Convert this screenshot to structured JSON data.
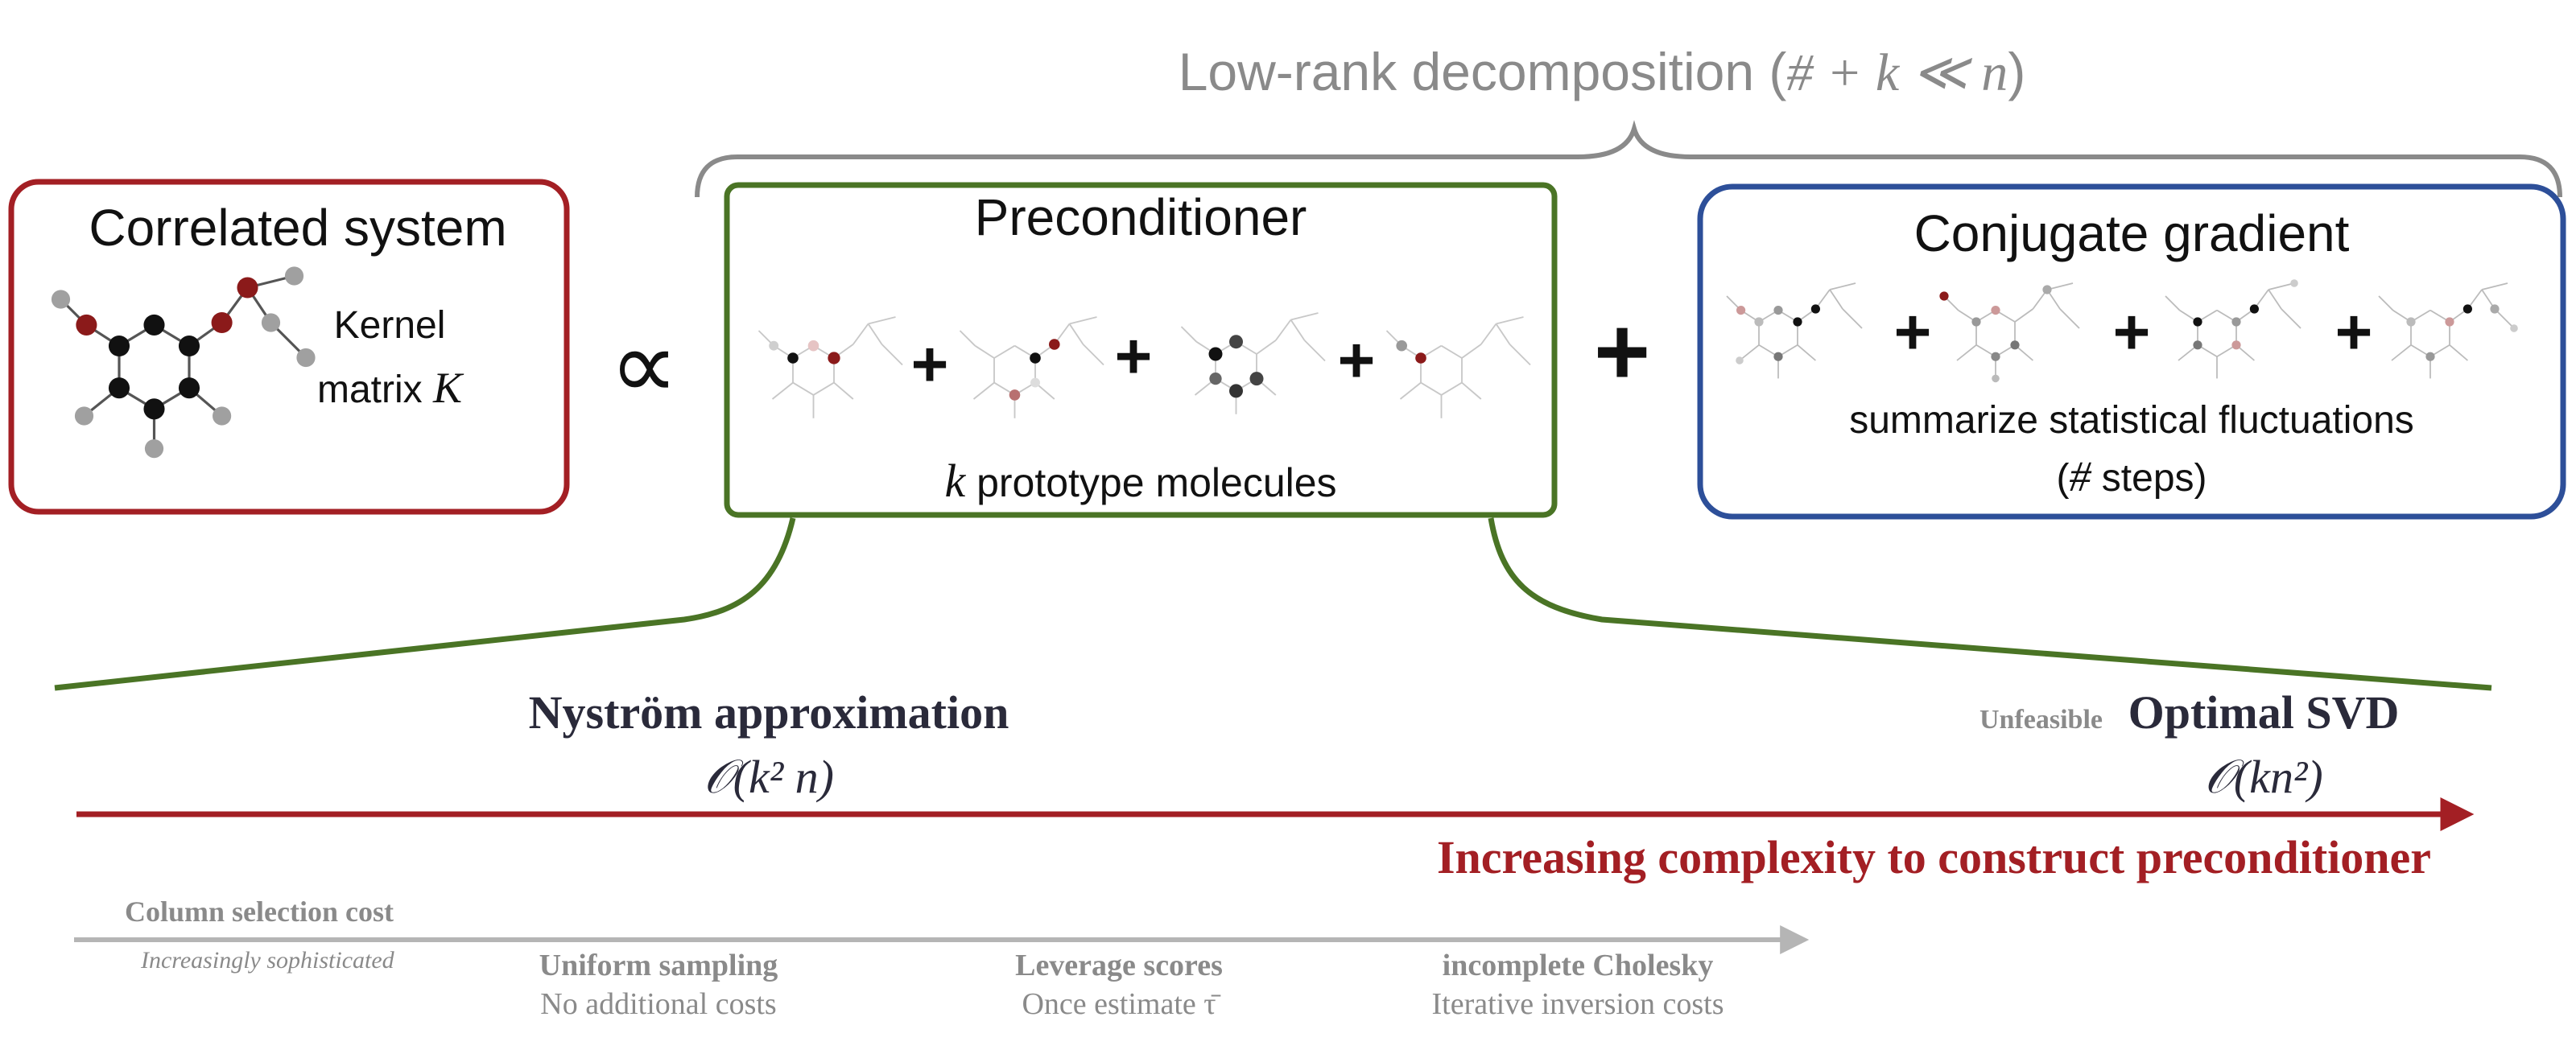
{
  "top_brace": {
    "label_prefix": "Low-rank decomposition (",
    "label_math": "# + k ≪ n",
    "label_suffix": ")"
  },
  "boxes": {
    "correlated": {
      "title": "Correlated system",
      "caption_line1": "Kernel",
      "caption_line2_text": "matrix ",
      "caption_line2_math": "K",
      "color": "#a31f24"
    },
    "preconditioner": {
      "title": "Preconditioner",
      "caption_math": "k",
      "caption_text": " prototype molecules",
      "color": "#4a7425"
    },
    "cg": {
      "title": "Conjugate gradient",
      "caption_line1": "summarize statistical fluctuations",
      "caption_line2_open": "(",
      "caption_line2_math": "#",
      "caption_line2_text": " steps)",
      "color": "#2d4f99"
    }
  },
  "operators": {
    "proportional": "∝",
    "plus": "+"
  },
  "spectrum": {
    "left_title": "Nyström approximation",
    "left_complexity": "𝒪(k² n)",
    "right_tag": "Unfeasible",
    "right_title": "Optimal SVD",
    "right_complexity": "𝒪(kn²)",
    "arrow_label": "Increasing complexity to construct preconditioner",
    "arrow_color": "#a31f24"
  },
  "column_selection": {
    "title": "Column selection cost",
    "subtitle": "Increasingly sophisticated",
    "methods": [
      {
        "name": "Uniform sampling",
        "cost": "No additional costs"
      },
      {
        "name": "Leverage scores",
        "cost": "Once estimate τ̄"
      },
      {
        "name": "incomplete Cholesky",
        "cost": "Iterative inversion costs"
      }
    ]
  },
  "colors": {
    "gray_text": "#8a8a8a",
    "dark_text": "#2a2a3a",
    "atom_red": "#8b1a1a",
    "atom_black": "#111111",
    "atom_gray": "#a0a0a0"
  }
}
